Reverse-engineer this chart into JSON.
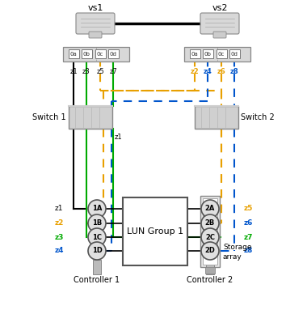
{
  "bg_color": "#ffffff",
  "vs1_label": "vs1",
  "vs2_label": "vs2",
  "switch1_label": "Switch 1",
  "switch2_label": "Switch 2",
  "ctrl1_label": "Controller 1",
  "ctrl2_label": "Controller 2",
  "lun_label": "LUN Group 1",
  "storage_label_1": "Storage",
  "storage_label_2": "array",
  "ports_left": [
    "0a",
    "0b",
    "0c",
    "0d"
  ],
  "ports_right": [
    "0a",
    "0b",
    "0c",
    "0d"
  ],
  "zone_top_left": [
    "z1",
    "z3",
    "z5",
    "z7"
  ],
  "zone_top_right": [
    "z2",
    "z4",
    "z6",
    "z8"
  ],
  "ctrl1_ports": [
    "1A",
    "1B",
    "1C",
    "1D"
  ],
  "ctrl2_ports": [
    "2A",
    "2B",
    "2C",
    "2D"
  ],
  "zone_left": [
    "z1",
    "z2",
    "z3",
    "z4"
  ],
  "zone_right": [
    "z5",
    "z6",
    "z7",
    "z8"
  ],
  "zone_left_colors": [
    "#000000",
    "#e8a000",
    "#00aa00",
    "#0055cc"
  ],
  "zone_right_colors": [
    "#e8a000",
    "#0055cc",
    "#00aa00",
    "#0055cc"
  ],
  "zone_top_right_colors": [
    "#e8a000",
    "#0055cc",
    "#e8a000",
    "#0055cc"
  ],
  "color_black": "#000000",
  "color_green": "#00aa00",
  "color_yellow": "#e8a000",
  "color_blue": "#0055cc",
  "color_gray": "#aaaaaa",
  "color_switch": "#d0d0d0",
  "color_port": "#e0e0e0",
  "color_hba": "#d8d8d8",
  "color_white": "#ffffff"
}
